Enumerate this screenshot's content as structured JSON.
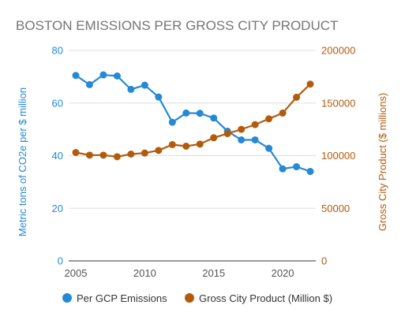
{
  "chart_data": {
    "type": "line",
    "title": "BOSTON EMISSIONS PER GROSS CITY PRODUCT",
    "x": [
      2005,
      2006,
      2007,
      2008,
      2009,
      2010,
      2011,
      2012,
      2013,
      2014,
      2015,
      2016,
      2017,
      2018,
      2019,
      2020,
      2021,
      2022
    ],
    "x_ticks": [
      "2005",
      "2010",
      "2015",
      "2020"
    ],
    "xlim": [
      2005,
      2022
    ],
    "y_left": {
      "label": "Metric tons of CO2e per $ million",
      "lim": [
        0,
        80
      ],
      "ticks": [
        "0",
        "20",
        "40",
        "60",
        "80"
      ]
    },
    "y_right": {
      "label": "Gross City Product ($ millions)",
      "lim": [
        0,
        200000
      ],
      "ticks": [
        "0",
        "50000",
        "100000",
        "150000",
        "200000"
      ]
    },
    "series": [
      {
        "name": "Per GCP Emissions",
        "axis": "left",
        "color": "#2589d6",
        "values": [
          70.5,
          67,
          70.7,
          70.3,
          65.2,
          66.8,
          62.3,
          52.7,
          56.2,
          56.1,
          54.3,
          49.3,
          46,
          46,
          42.8,
          35,
          35.8,
          34
        ]
      },
      {
        "name": "Gross City Product (Million $)",
        "axis": "right",
        "color": "#b35b0c",
        "values": [
          103000,
          100500,
          100500,
          99000,
          101500,
          102500,
          105000,
          110500,
          109000,
          111000,
          117000,
          121000,
          125000,
          129500,
          135000,
          140500,
          155500,
          168000
        ]
      }
    ],
    "grid": true,
    "legend_position": "bottom"
  }
}
